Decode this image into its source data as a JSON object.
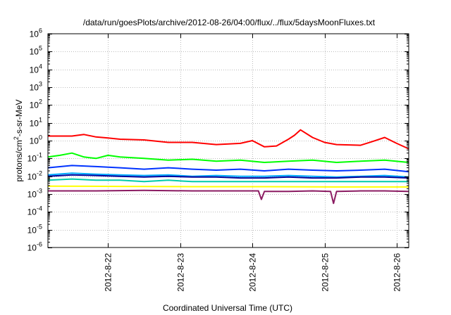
{
  "chart_data": {
    "type": "line",
    "title": "/data/run/goesPlots/archive/2012-08-26/04:00/flux/../flux/5daysMoonFluxes.txt",
    "xlabel": "Coordinated Universal Time (UTC)",
    "ylabel_main": "protons/cm",
    "ylabel_sup": "2",
    "ylabel_rest": "-s-sr-MeV",
    "y_scale": "log",
    "ylim": [
      1e-06,
      1000000.0
    ],
    "xlim": [
      "2012-08-21T04:00",
      "2012-08-26T04:00"
    ],
    "y_ticks": [
      {
        "base": "10",
        "exp": "-6"
      },
      {
        "base": "10",
        "exp": "-5"
      },
      {
        "base": "10",
        "exp": "-4"
      },
      {
        "base": "10",
        "exp": "-3"
      },
      {
        "base": "10",
        "exp": "-2"
      },
      {
        "base": "10",
        "exp": "-1"
      },
      {
        "base": "10",
        "exp": "0"
      },
      {
        "base": "10",
        "exp": "1"
      },
      {
        "base": "10",
        "exp": "2"
      },
      {
        "base": "10",
        "exp": "3"
      },
      {
        "base": "10",
        "exp": "4"
      },
      {
        "base": "10",
        "exp": "5"
      },
      {
        "base": "10",
        "exp": "6"
      }
    ],
    "x_ticks": [
      "2012-8-22",
      "2012-8-23",
      "2012-8-24",
      "2012-8-25",
      "2012-8-26"
    ],
    "grid": true,
    "series": [
      {
        "color": "#ff0000",
        "x": [
          "2012-08-21T04:00",
          "2012-08-21T12:00",
          "2012-08-21T16:00",
          "2012-08-21T20:00",
          "2012-08-22T00:00",
          "2012-08-22T04:00",
          "2012-08-22T12:00",
          "2012-08-22T20:00",
          "2012-08-23T04:00",
          "2012-08-23T12:00",
          "2012-08-23T20:00",
          "2012-08-24T00:00",
          "2012-08-24T04:00",
          "2012-08-24T08:00",
          "2012-08-24T12:00",
          "2012-08-24T14:00",
          "2012-08-24T16:00",
          "2012-08-24T20:00",
          "2012-08-25T00:00",
          "2012-08-25T04:00",
          "2012-08-25T12:00",
          "2012-08-25T16:00",
          "2012-08-25T20:00",
          "2012-08-26T00:00",
          "2012-08-26T04:00"
        ],
        "values": [
          1.8,
          1.8,
          2.2,
          1.6,
          1.4,
          1.2,
          1.1,
          0.8,
          0.8,
          0.6,
          0.7,
          1.0,
          0.45,
          0.5,
          1.2,
          2.0,
          4.0,
          1.5,
          0.8,
          0.6,
          0.55,
          0.9,
          1.5,
          0.7,
          0.35
        ]
      },
      {
        "color": "#00ff00",
        "x": [
          "2012-08-21T04:00",
          "2012-08-21T08:00",
          "2012-08-21T12:00",
          "2012-08-21T16:00",
          "2012-08-21T20:00",
          "2012-08-22T00:00",
          "2012-08-22T04:00",
          "2012-08-22T12:00",
          "2012-08-22T20:00",
          "2012-08-23T04:00",
          "2012-08-23T12:00",
          "2012-08-23T20:00",
          "2012-08-24T04:00",
          "2012-08-24T12:00",
          "2012-08-24T20:00",
          "2012-08-25T04:00",
          "2012-08-25T12:00",
          "2012-08-25T20:00",
          "2012-08-26T04:00"
        ],
        "values": [
          0.12,
          0.15,
          0.2,
          0.12,
          0.1,
          0.15,
          0.12,
          0.1,
          0.08,
          0.09,
          0.07,
          0.08,
          0.06,
          0.07,
          0.08,
          0.06,
          0.07,
          0.08,
          0.06
        ]
      },
      {
        "color": "#0033ff",
        "x": [
          "2012-08-21T04:00",
          "2012-08-21T12:00",
          "2012-08-21T20:00",
          "2012-08-22T04:00",
          "2012-08-22T12:00",
          "2012-08-22T20:00",
          "2012-08-23T04:00",
          "2012-08-23T12:00",
          "2012-08-23T20:00",
          "2012-08-24T04:00",
          "2012-08-24T12:00",
          "2012-08-24T20:00",
          "2012-08-25T04:00",
          "2012-08-25T12:00",
          "2012-08-25T20:00",
          "2012-08-26T04:00"
        ],
        "values": [
          0.03,
          0.04,
          0.035,
          0.03,
          0.025,
          0.03,
          0.025,
          0.022,
          0.025,
          0.02,
          0.025,
          0.022,
          0.02,
          0.022,
          0.025,
          0.018
        ]
      },
      {
        "color": "#00aaff",
        "x": [
          "2012-08-21T04:00",
          "2012-08-21T12:00",
          "2012-08-21T20:00",
          "2012-08-22T04:00",
          "2012-08-22T12:00",
          "2012-08-22T20:00",
          "2012-08-23T04:00",
          "2012-08-23T12:00",
          "2012-08-23T20:00",
          "2012-08-24T04:00",
          "2012-08-24T12:00",
          "2012-08-24T20:00",
          "2012-08-25T04:00",
          "2012-08-25T12:00",
          "2012-08-25T20:00",
          "2012-08-26T04:00"
        ],
        "values": [
          0.012,
          0.015,
          0.013,
          0.012,
          0.011,
          0.012,
          0.01,
          0.011,
          0.01,
          0.01,
          0.011,
          0.01,
          0.009,
          0.01,
          0.011,
          0.009
        ]
      },
      {
        "color": "#000099",
        "x": [
          "2012-08-21T04:00",
          "2012-08-21T12:00",
          "2012-08-21T20:00",
          "2012-08-22T04:00",
          "2012-08-22T12:00",
          "2012-08-22T20:00",
          "2012-08-23T04:00",
          "2012-08-23T12:00",
          "2012-08-23T20:00",
          "2012-08-24T04:00",
          "2012-08-24T12:00",
          "2012-08-24T20:00",
          "2012-08-25T04:00",
          "2012-08-25T12:00",
          "2012-08-25T20:00",
          "2012-08-26T04:00"
        ],
        "values": [
          0.01,
          0.012,
          0.011,
          0.01,
          0.009,
          0.01,
          0.009,
          0.009,
          0.008,
          0.008,
          0.009,
          0.008,
          0.008,
          0.009,
          0.009,
          0.008
        ]
      },
      {
        "color": "#00ccaa",
        "x": [
          "2012-08-21T04:00",
          "2012-08-21T12:00",
          "2012-08-21T20:00",
          "2012-08-22T04:00",
          "2012-08-22T12:00",
          "2012-08-22T20:00",
          "2012-08-23T04:00",
          "2012-08-23T12:00",
          "2012-08-23T20:00",
          "2012-08-24T04:00",
          "2012-08-24T12:00",
          "2012-08-24T20:00",
          "2012-08-25T04:00",
          "2012-08-25T12:00",
          "2012-08-25T20:00",
          "2012-08-26T04:00"
        ],
        "values": [
          0.006,
          0.007,
          0.006,
          0.006,
          0.005,
          0.006,
          0.005,
          0.005,
          0.005,
          0.005,
          0.005,
          0.005,
          0.005,
          0.005,
          0.005,
          0.005
        ]
      },
      {
        "color": "#ffff00",
        "x": [
          "2012-08-21T04:00",
          "2012-08-22T04:00",
          "2012-08-23T04:00",
          "2012-08-24T04:00",
          "2012-08-25T04:00",
          "2012-08-26T04:00"
        ],
        "values": [
          0.0028,
          0.0027,
          0.0026,
          0.0026,
          0.0025,
          0.0025
        ]
      },
      {
        "color": "#8b1c62",
        "x": [
          "2012-08-21T04:00",
          "2012-08-21T20:00",
          "2012-08-22T12:00",
          "2012-08-23T04:00",
          "2012-08-23T20:00",
          "2012-08-24T02:00",
          "2012-08-24T03:00",
          "2012-08-24T04:00",
          "2012-08-24T12:00",
          "2012-08-24T20:00",
          "2012-08-25T02:00",
          "2012-08-25T03:00",
          "2012-08-25T04:00",
          "2012-08-25T12:00",
          "2012-08-25T20:00",
          "2012-08-26T04:00"
        ],
        "values": [
          0.0015,
          0.0015,
          0.0016,
          0.0015,
          0.0015,
          0.0015,
          0.0005,
          0.0014,
          0.0014,
          0.0015,
          0.0014,
          0.0003,
          0.0014,
          0.0015,
          0.0015,
          0.0014
        ]
      }
    ]
  }
}
